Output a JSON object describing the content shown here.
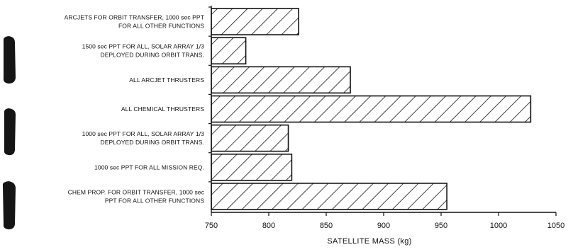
{
  "chart_data": {
    "type": "bar",
    "orientation": "horizontal",
    "categories": [
      [
        "ARCJETS FOR ORBIT TRANSFER, 1000 sec PPT",
        "FOR ALL OTHER FUNCTIONS"
      ],
      [
        "1500 sec PPT FOR ALL, SOLAR ARRAY 1/3",
        "DEPLOYED DURING ORBIT TRANS."
      ],
      [
        "ALL ARCJET THRUSTERS"
      ],
      [
        "ALL CHEMICAL THRUSTERS"
      ],
      [
        "1000 sec PPT FOR ALL, SOLAR ARRAY 1/3",
        "DEPLOYED DURING ORBIT TRANS."
      ],
      [
        "1000 sec PPT FOR ALL MISSION REQ."
      ],
      [
        "CHEM PROP. FOR ORBIT TRANSFER, 1000 sec",
        "PPT FOR ALL OTHER FUNCTIONS"
      ]
    ],
    "values": [
      826,
      780,
      871,
      1028,
      817,
      820,
      955
    ],
    "xlabel": "SATELLITE MASS (kg)",
    "xlim": [
      750,
      1050
    ],
    "xticks": [
      "750",
      "800",
      "850",
      "900",
      "950",
      "1000",
      "1050"
    ],
    "grid": false,
    "bar_fill": "diagonal-hatch",
    "bar_color": "#111111"
  }
}
